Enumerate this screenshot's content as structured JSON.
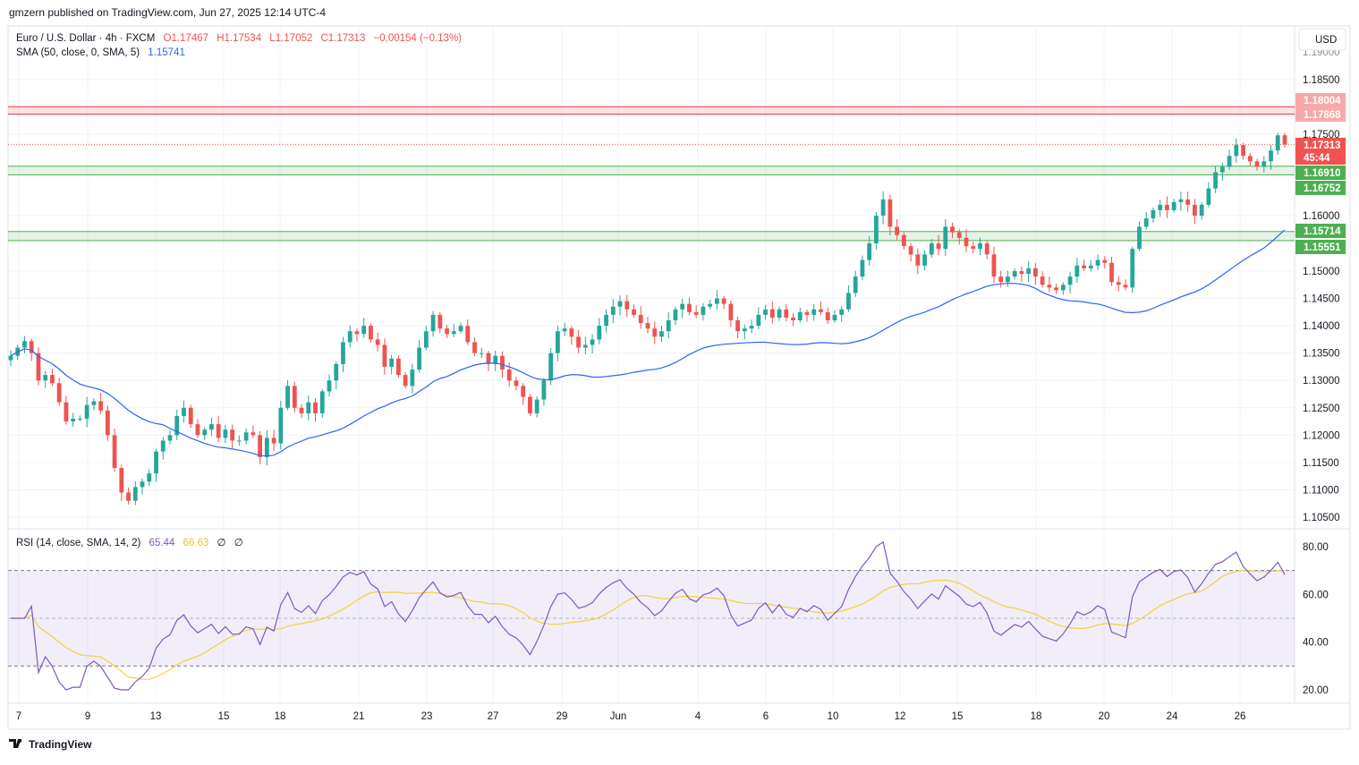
{
  "header": {
    "published": "gmzern published on TradingView.com, Jun 27, 2025 12:14 UTC-4"
  },
  "main_legend": {
    "symbol": "Euro / U.S. Dollar · 4h · FXCM",
    "open": "O1.17467",
    "high": "H1.17534",
    "low": "L1.17052",
    "close": "C1.17313",
    "change": "−0.00154 (−0.13%)",
    "sma_label": "SMA (50, close, 0, SMA, 5)",
    "sma_value": "1.15741"
  },
  "rsi_legend": {
    "label": "RSI (14, close, SMA, 14, 2)",
    "rsi_value": "65.44",
    "rsi_sma_value": "66.63",
    "extra1": "∅",
    "extra2": "∅"
  },
  "currency_button": "USD",
  "footer_brand": "TradingView",
  "badges": {
    "r1": "1.18004",
    "r2": "1.17868",
    "last": "1.17313",
    "countdown": "45:44",
    "s1": "1.16910",
    "s2": "1.16752",
    "s3": "1.15714",
    "s4": "1.15551"
  },
  "colors": {
    "up": "#26a69a",
    "down": "#ef5350",
    "sma": "#2962ff",
    "rsi": "#7e57c2",
    "rsi_sma": "#f2d33c",
    "resistance": "#f23645",
    "support": "#4caf50"
  },
  "chart_data": [
    {
      "type": "candlestick",
      "symbol": "EURUSD",
      "interval": "4h",
      "price_axis": {
        "ticks": [
          "1.18500",
          "1.17500",
          "1.16000",
          "1.15000",
          "1.14500",
          "1.14000",
          "1.13500",
          "1.13000",
          "1.12500",
          "1.12000",
          "1.11500",
          "1.11000",
          "1.10500"
        ],
        "ylim": [
          1.102,
          1.192
        ],
        "partial_top_tick": "1.19000"
      },
      "time_axis": {
        "ticks": [
          "7",
          "9",
          "13",
          "15",
          "18",
          "21",
          "23",
          "27",
          "29",
          "Jun",
          "4",
          "6",
          "10",
          "12",
          "15",
          "18",
          "20",
          "24",
          "26"
        ]
      },
      "zones": [
        {
          "kind": "resistance",
          "from": 1.17868,
          "to": 1.18004
        },
        {
          "kind": "support",
          "from": 1.16752,
          "to": 1.1691
        },
        {
          "kind": "support",
          "from": 1.15551,
          "to": 1.15714
        }
      ],
      "last_price": 1.17313,
      "close_series": [
        1.1345,
        1.136,
        1.1372,
        1.135,
        1.13,
        1.131,
        1.1295,
        1.126,
        1.1225,
        1.123,
        1.123,
        1.1255,
        1.1262,
        1.1245,
        1.12,
        1.114,
        1.1095,
        1.108,
        1.1105,
        1.1115,
        1.113,
        1.117,
        1.119,
        1.12,
        1.1235,
        1.125,
        1.122,
        1.12,
        1.121,
        1.122,
        1.1195,
        1.121,
        1.119,
        1.119,
        1.1205,
        1.12,
        1.116,
        1.1195,
        1.1185,
        1.125,
        1.129,
        1.125,
        1.124,
        1.126,
        1.124,
        1.128,
        1.13,
        1.133,
        1.137,
        1.139,
        1.1385,
        1.14,
        1.1375,
        1.1365,
        1.1325,
        1.134,
        1.131,
        1.129,
        1.132,
        1.136,
        1.139,
        1.142,
        1.1395,
        1.1385,
        1.139,
        1.14,
        1.137,
        1.135,
        1.135,
        1.133,
        1.1345,
        1.132,
        1.13,
        1.129,
        1.127,
        1.124,
        1.1265,
        1.13,
        1.135,
        1.139,
        1.1395,
        1.138,
        1.136,
        1.1365,
        1.1375,
        1.14,
        1.142,
        1.1435,
        1.1445,
        1.143,
        1.142,
        1.1405,
        1.1395,
        1.138,
        1.139,
        1.141,
        1.143,
        1.144,
        1.1425,
        1.142,
        1.1435,
        1.144,
        1.145,
        1.144,
        1.141,
        1.139,
        1.1395,
        1.14,
        1.142,
        1.143,
        1.1415,
        1.143,
        1.1415,
        1.141,
        1.1425,
        1.142,
        1.143,
        1.1425,
        1.141,
        1.142,
        1.143,
        1.146,
        1.149,
        1.152,
        1.155,
        1.16,
        1.163,
        1.158,
        1.1565,
        1.1545,
        1.153,
        1.151,
        1.153,
        1.155,
        1.154,
        1.158,
        1.157,
        1.156,
        1.1545,
        1.154,
        1.155,
        1.153,
        1.149,
        1.148,
        1.149,
        1.15,
        1.1495,
        1.1505,
        1.149,
        1.1475,
        1.147,
        1.1465,
        1.1475,
        1.149,
        1.151,
        1.1505,
        1.151,
        1.152,
        1.1515,
        1.148,
        1.1475,
        1.147,
        1.154,
        1.158,
        1.1595,
        1.161,
        1.162,
        1.161,
        1.1625,
        1.163,
        1.162,
        1.16,
        1.162,
        1.165,
        1.168,
        1.169,
        1.171,
        1.173,
        1.171,
        1.17,
        1.169,
        1.17,
        1.172,
        1.1748,
        1.1731
      ],
      "sma50": {
        "start": 1.1345,
        "low": 1.12,
        "end": 1.15741
      }
    },
    {
      "type": "line",
      "name": "RSI (14, close, SMA, 14, 2)",
      "ylim": [
        15,
        85
      ],
      "ticks": [
        "80.00",
        "60.00",
        "40.00",
        "20.00"
      ],
      "bands": {
        "upper": 70,
        "middle": 50,
        "lower": 30
      },
      "series": [
        {
          "name": "RSI",
          "last": 65.44
        },
        {
          "name": "RSI SMA",
          "last": 66.63
        }
      ]
    }
  ]
}
